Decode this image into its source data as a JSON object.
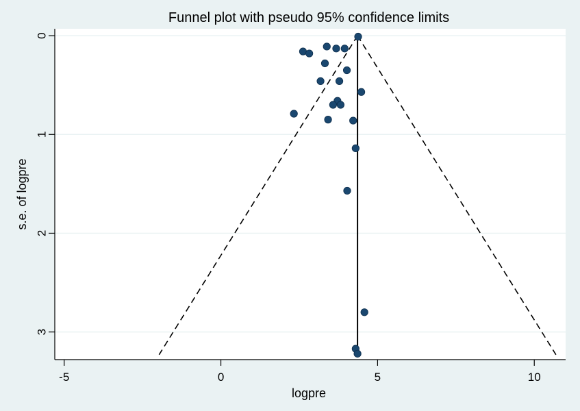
{
  "chart_data": {
    "type": "scatter",
    "title": "Funnel plot with pseudo 95% confidence limits",
    "xlabel": "logpre",
    "ylabel": "s.e. of logpre",
    "xlim": [
      -5.3,
      11.0
    ],
    "ylim": [
      3.28,
      -0.07
    ],
    "y_reversed": true,
    "grid": true,
    "x_ticks": [
      -5,
      0,
      5,
      10
    ],
    "y_ticks": [
      0,
      1,
      2,
      3
    ],
    "x_tick_labels": [
      "-5",
      "0",
      "5",
      "10"
    ],
    "y_tick_labels": [
      "0",
      "1",
      "2",
      "3"
    ],
    "pooled_estimate": 4.36,
    "funnel_se_max": 3.23,
    "marker_color": "#1a476f",
    "background_color": "#eaf2f3",
    "plot_background_color": "#ffffff",
    "points": [
      {
        "x": 4.38,
        "y": 0.01
      },
      {
        "x": 3.38,
        "y": 0.11
      },
      {
        "x": 3.68,
        "y": 0.13
      },
      {
        "x": 3.95,
        "y": 0.13
      },
      {
        "x": 2.62,
        "y": 0.16
      },
      {
        "x": 2.82,
        "y": 0.18
      },
      {
        "x": 3.32,
        "y": 0.28
      },
      {
        "x": 4.02,
        "y": 0.35
      },
      {
        "x": 3.18,
        "y": 0.46
      },
      {
        "x": 3.78,
        "y": 0.46
      },
      {
        "x": 4.48,
        "y": 0.57
      },
      {
        "x": 3.72,
        "y": 0.66
      },
      {
        "x": 3.58,
        "y": 0.7
      },
      {
        "x": 3.82,
        "y": 0.7
      },
      {
        "x": 2.33,
        "y": 0.79
      },
      {
        "x": 3.42,
        "y": 0.85
      },
      {
        "x": 4.22,
        "y": 0.86
      },
      {
        "x": 4.3,
        "y": 1.14
      },
      {
        "x": 4.03,
        "y": 1.57
      },
      {
        "x": 4.58,
        "y": 2.8
      },
      {
        "x": 4.3,
        "y": 3.17
      },
      {
        "x": 4.36,
        "y": 3.22
      }
    ]
  }
}
